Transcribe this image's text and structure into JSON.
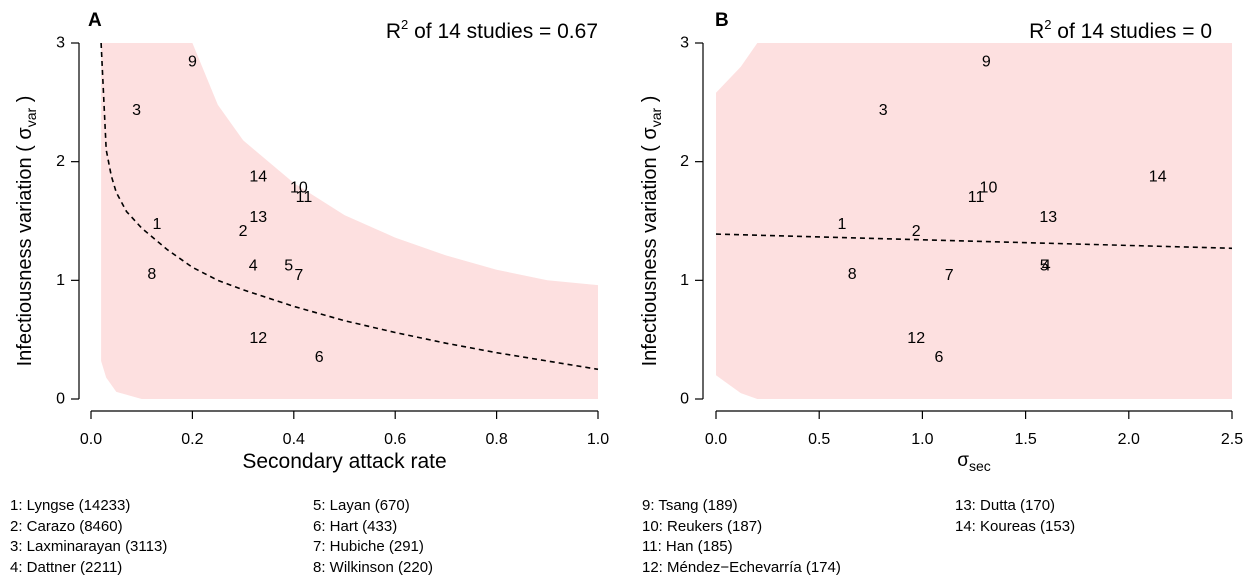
{
  "chart_data": [
    {
      "type": "scatter",
      "panel_label": "A",
      "title_prefix": "R",
      "title_sup": "2",
      "title_suffix": " of 14 studies = 0.67",
      "xlabel": "Secondary attack rate",
      "ylabel_main": "Infectiousness variation ( σ",
      "ylabel_sub": "var",
      "ylabel_end": " )",
      "xlim": [
        0,
        1.0
      ],
      "ylim": [
        0,
        3
      ],
      "xticks": [
        "0.0",
        "0.2",
        "0.4",
        "0.6",
        "0.8",
        "1.0"
      ],
      "xtick_values": [
        0,
        0.2,
        0.4,
        0.6,
        0.8,
        1.0
      ],
      "yticks": [
        "0",
        "1",
        "2",
        "3"
      ],
      "ytick_values": [
        0,
        1,
        2,
        3
      ],
      "points": [
        {
          "label": "1",
          "x": 0.13,
          "y": 1.47
        },
        {
          "label": "2",
          "x": 0.3,
          "y": 1.41
        },
        {
          "label": "3",
          "x": 0.09,
          "y": 2.43
        },
        {
          "label": "4",
          "x": 0.32,
          "y": 1.12
        },
        {
          "label": "5",
          "x": 0.39,
          "y": 1.12
        },
        {
          "label": "6",
          "x": 0.45,
          "y": 0.35
        },
        {
          "label": "7",
          "x": 0.41,
          "y": 1.04
        },
        {
          "label": "8",
          "x": 0.12,
          "y": 1.05
        },
        {
          "label": "9",
          "x": 0.2,
          "y": 2.84
        },
        {
          "label": "10",
          "x": 0.41,
          "y": 1.78
        },
        {
          "label": "11",
          "x": 0.42,
          "y": 1.7
        },
        {
          "label": "12",
          "x": 0.33,
          "y": 0.51
        },
        {
          "label": "13",
          "x": 0.33,
          "y": 1.53
        },
        {
          "label": "14",
          "x": 0.33,
          "y": 1.87
        }
      ],
      "fit_line": {
        "x": [
          0.02,
          0.03,
          0.04,
          0.05,
          0.07,
          0.1,
          0.15,
          0.2,
          0.25,
          0.3,
          0.4,
          0.5,
          0.6,
          0.7,
          0.8,
          0.9,
          1.0
        ],
        "y": [
          3.0,
          2.1,
          1.88,
          1.74,
          1.58,
          1.44,
          1.26,
          1.11,
          1.0,
          0.92,
          0.78,
          0.66,
          0.56,
          0.47,
          0.39,
          0.32,
          0.25
        ]
      },
      "band": {
        "x": [
          0.02,
          0.03,
          0.05,
          0.1,
          0.15,
          0.2,
          0.25,
          0.3,
          0.4,
          0.5,
          0.6,
          0.7,
          0.8,
          0.9,
          1.0
        ],
        "lower": [
          0.32,
          0.18,
          0.06,
          0.0,
          0.0,
          0.0,
          0.0,
          0.0,
          0.0,
          0.0,
          0.0,
          0.0,
          0.0,
          0.0,
          0.0
        ],
        "upper": [
          3.0,
          3.0,
          3.0,
          3.0,
          3.0,
          3.0,
          2.48,
          2.18,
          1.82,
          1.55,
          1.36,
          1.21,
          1.09,
          1.0,
          0.96
        ]
      },
      "colors": {
        "band": "#fde0e0",
        "line": "#000000"
      }
    },
    {
      "type": "scatter",
      "panel_label": "B",
      "title_prefix": "R",
      "title_sup": "2",
      "title_suffix": " of 14 studies = 0",
      "xlabel_main": "σ",
      "xlabel_sub": "sec",
      "ylabel_main": "Infectiousness variation ( σ",
      "ylabel_sub": "var",
      "ylabel_end": " )",
      "xlim": [
        0,
        2.5
      ],
      "ylim": [
        0,
        3
      ],
      "xticks": [
        "0.0",
        "0.5",
        "1.0",
        "1.5",
        "2.0",
        "2.5"
      ],
      "xtick_values": [
        0,
        0.5,
        1.0,
        1.5,
        2.0,
        2.5
      ],
      "yticks": [
        "0",
        "1",
        "2",
        "3"
      ],
      "ytick_values": [
        0,
        1,
        2,
        3
      ],
      "points": [
        {
          "label": "1",
          "x": 0.61,
          "y": 1.47
        },
        {
          "label": "2",
          "x": 0.97,
          "y": 1.41
        },
        {
          "label": "3",
          "x": 0.81,
          "y": 2.43
        },
        {
          "label": "4",
          "x": 1.6,
          "y": 1.12
        },
        {
          "label": "5",
          "x": 1.59,
          "y": 1.12
        },
        {
          "label": "6",
          "x": 1.08,
          "y": 0.35
        },
        {
          "label": "7",
          "x": 1.13,
          "y": 1.04
        },
        {
          "label": "8",
          "x": 0.66,
          "y": 1.05
        },
        {
          "label": "9",
          "x": 1.31,
          "y": 2.84
        },
        {
          "label": "10",
          "x": 1.32,
          "y": 1.78
        },
        {
          "label": "11",
          "x": 1.26,
          "y": 1.7
        },
        {
          "label": "12",
          "x": 0.97,
          "y": 0.51
        },
        {
          "label": "13",
          "x": 1.61,
          "y": 1.53
        },
        {
          "label": "14",
          "x": 2.14,
          "y": 1.87
        }
      ],
      "fit_line": {
        "x": [
          0,
          2.5
        ],
        "y": [
          1.39,
          1.27
        ]
      },
      "band": {
        "x": [
          0.0,
          0.12,
          0.2,
          0.5,
          1.0,
          1.5,
          2.0,
          2.5
        ],
        "lower": [
          0.2,
          0.05,
          0.0,
          0.0,
          0.0,
          0.0,
          0.0,
          0.0
        ],
        "upper": [
          2.58,
          2.8,
          3.0,
          3.0,
          3.0,
          3.0,
          3.0,
          3.0
        ]
      },
      "colors": {
        "band": "#fde0e0",
        "line": "#000000"
      }
    }
  ],
  "legend": {
    "col1": [
      "1: Lyngse (14233)",
      "2: Carazo (8460)",
      "3: Laxminarayan (3113)",
      "4: Dattner (2211)"
    ],
    "col2": [
      "5: Layan (670)",
      "6: Hart (433)",
      "7: Hubiche (291)",
      "8: Wilkinson (220)"
    ],
    "col3": [
      "9: Tsang (189)",
      "10: Reukers (187)",
      "11: Han (185)",
      "12: Méndez−Echevarría (174)"
    ],
    "col4": [
      "13: Dutta (170)",
      "14: Koureas (153)"
    ]
  }
}
